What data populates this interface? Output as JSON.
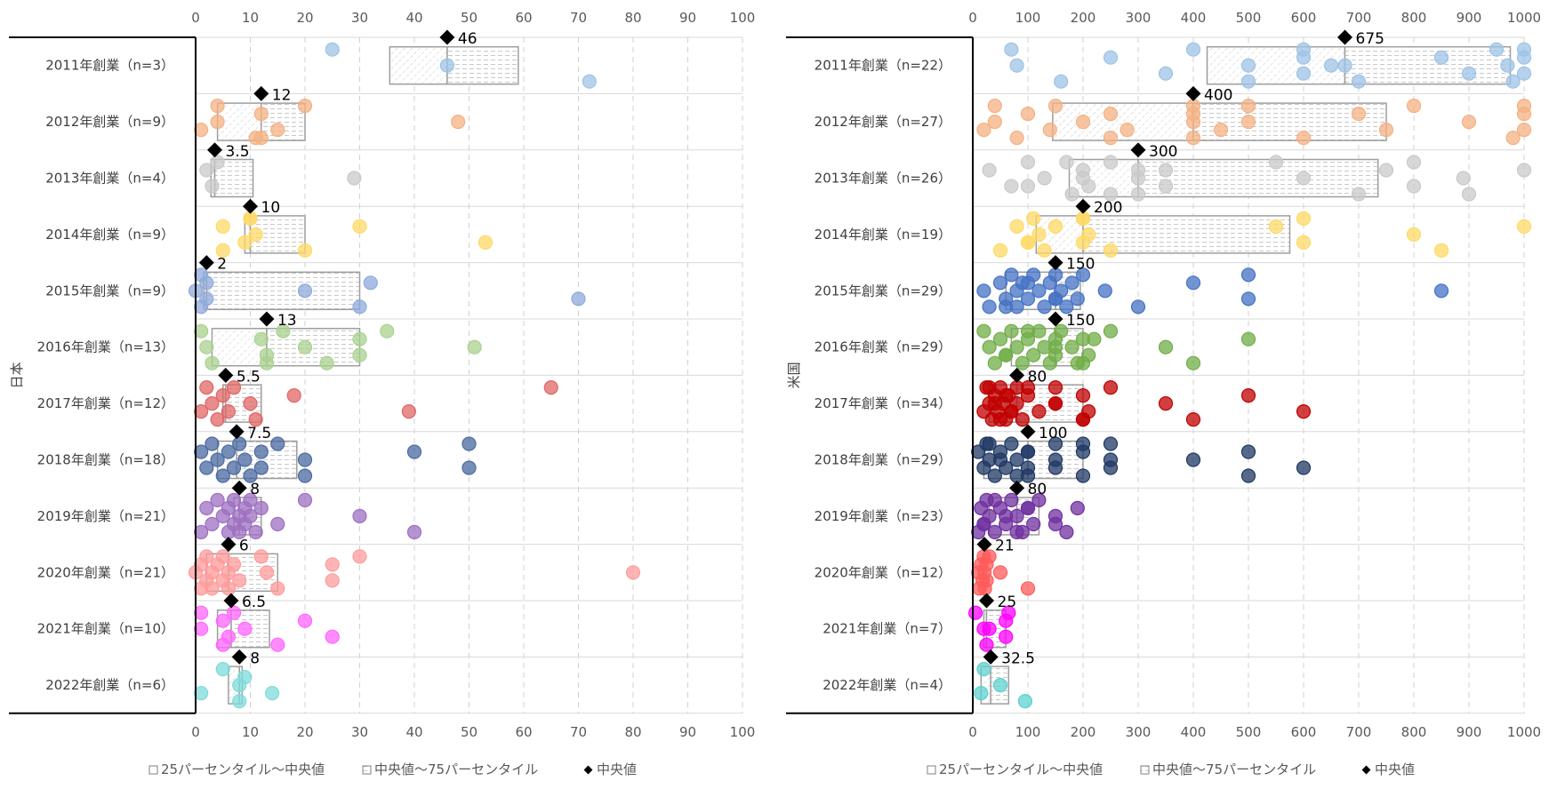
{
  "legend": {
    "q1": "25パーセンタイル～中央値",
    "q3": "中央値～75パーセンタイル",
    "median": "中央値"
  },
  "chart_data": [
    {
      "type": "scatter",
      "group_label": "日本",
      "xlim": [
        0,
        100
      ],
      "xticks": [
        0,
        10,
        20,
        30,
        40,
        50,
        60,
        70,
        80,
        90,
        100
      ],
      "tick_labels": [
        "0",
        "10",
        "20",
        "30",
        "40",
        "50",
        "60",
        "70",
        "80",
        "90",
        "100"
      ],
      "grid": true,
      "legend_position": "bottom",
      "categories": [
        {
          "label": "2011年創業（n=3）",
          "color": "#9dc3e6",
          "q1": 35.5,
          "median": 46,
          "q3": 59,
          "median_label": "46",
          "points": [
            25,
            46,
            72
          ]
        },
        {
          "label": "2012年創業（n=9）",
          "color": "#f4b183",
          "q1": 4,
          "median": 12,
          "q3": 20,
          "median_label": "12",
          "points": [
            1,
            4,
            4,
            11,
            12,
            15,
            20,
            48,
            12
          ]
        },
        {
          "label": "2013年創業（n=4）",
          "color": "#c9c9c9",
          "q1": 2.8,
          "median": 3.5,
          "q3": 10.5,
          "median_label": "3.5",
          "points": [
            2,
            3,
            4,
            29
          ]
        },
        {
          "label": "2014年創業（n=9）",
          "color": "#ffd966",
          "q1": 9,
          "median": 10,
          "q3": 20,
          "median_label": "10",
          "points": [
            5,
            5,
            9,
            10,
            11,
            20,
            30,
            53,
            10
          ]
        },
        {
          "label": "2015年創業（n=9）",
          "color": "#8faadc",
          "q1": 1.5,
          "median": 2,
          "q3": 30,
          "median_label": "2",
          "points": [
            0,
            1,
            2,
            2,
            1,
            20,
            30,
            32,
            70
          ]
        },
        {
          "label": "2016年創業（n=13）",
          "color": "#a9d18e",
          "q1": 3,
          "median": 13,
          "q3": 30,
          "median_label": "13",
          "points": [
            1,
            2,
            3,
            12,
            13,
            16,
            20,
            24,
            30,
            30,
            35,
            51,
            13
          ]
        },
        {
          "label": "2017年創業（n=12）",
          "color": "#e06666",
          "q1": 5,
          "median": 5.5,
          "q3": 12,
          "median_label": "5.5",
          "points": [
            1,
            2,
            3,
            4,
            5,
            6,
            7,
            10,
            11,
            18,
            39,
            65
          ]
        },
        {
          "label": "2018年創業（n=18）",
          "color": "#4a6aa0",
          "q1": 4,
          "median": 7.5,
          "q3": 18.5,
          "median_label": "7.5",
          "points": [
            1,
            2,
            3,
            4,
            5,
            6,
            7,
            8,
            9,
            10,
            12,
            12,
            15,
            20,
            20,
            40,
            50,
            50
          ]
        },
        {
          "label": "2019年創業（n=21）",
          "color": "#9e6fc2",
          "q1": 7,
          "median": 8,
          "q3": 12,
          "median_label": "8",
          "points": [
            1,
            2,
            3,
            4,
            5,
            6,
            6,
            7,
            7,
            8,
            8,
            9,
            9,
            10,
            10,
            11,
            12,
            15,
            20,
            30,
            40
          ]
        },
        {
          "label": "2020年創業（n=21）",
          "color": "#ff9b9b",
          "q1": 2,
          "median": 6,
          "q3": 15,
          "median_label": "6",
          "points": [
            0,
            1,
            1,
            2,
            2,
            3,
            3,
            4,
            5,
            5,
            6,
            6,
            7,
            8,
            12,
            13,
            15,
            25,
            25,
            30,
            80
          ]
        },
        {
          "label": "2021年創業（n=10）",
          "color": "#ff66ff",
          "q1": 4,
          "median": 6.5,
          "q3": 13.5,
          "median_label": "6.5",
          "points": [
            1,
            1,
            5,
            5,
            6,
            7,
            9,
            15,
            20,
            25
          ]
        },
        {
          "label": "2022年創業（n=6）",
          "color": "#7fdbdb",
          "q1": 6,
          "median": 8,
          "q3": 8.5,
          "median_label": "8",
          "points": [
            1,
            5,
            8,
            8,
            9,
            14
          ]
        }
      ]
    },
    {
      "type": "scatter",
      "group_label": "米国",
      "xlim": [
        0,
        1000
      ],
      "xticks": [
        0,
        100,
        200,
        300,
        400,
        500,
        600,
        700,
        800,
        900,
        1000
      ],
      "tick_labels": [
        "0",
        "100",
        "200",
        "300",
        "400",
        "500",
        "600",
        "700",
        "800",
        "900",
        "1000"
      ],
      "grid": true,
      "legend_position": "bottom",
      "categories": [
        {
          "label": "2011年創業（n=22）",
          "color": "#9dc3e6",
          "q1": 425,
          "median": 675,
          "q3": 975,
          "median_label": "675",
          "points": [
            70,
            80,
            160,
            250,
            350,
            400,
            500,
            500,
            600,
            600,
            600,
            650,
            700,
            850,
            900,
            950,
            970,
            980,
            1000,
            1000,
            1000,
            675
          ]
        },
        {
          "label": "2012年創業（n=27）",
          "color": "#f4b183",
          "q1": 145,
          "median": 400,
          "q3": 750,
          "median_label": "400",
          "points": [
            20,
            40,
            40,
            80,
            100,
            140,
            150,
            200,
            250,
            250,
            280,
            400,
            400,
            400,
            400,
            450,
            500,
            500,
            600,
            700,
            750,
            800,
            900,
            980,
            1000,
            1000,
            1000
          ]
        },
        {
          "label": "2013年創業（n=26）",
          "color": "#c9c9c9",
          "q1": 175,
          "median": 300,
          "q3": 735,
          "median_label": "300",
          "points": [
            30,
            70,
            100,
            130,
            180,
            200,
            210,
            250,
            300,
            300,
            350,
            350,
            550,
            600,
            700,
            750,
            800,
            800,
            890,
            900,
            1000,
            100,
            170,
            200,
            250,
            300
          ]
        },
        {
          "label": "2014年創業（n=19）",
          "color": "#ffd966",
          "q1": 115,
          "median": 200,
          "q3": 575,
          "median_label": "200",
          "points": [
            50,
            80,
            100,
            110,
            120,
            130,
            150,
            200,
            200,
            210,
            250,
            550,
            600,
            600,
            800,
            850,
            1000,
            100,
            200
          ]
        },
        {
          "label": "2015年創業（n=29）",
          "color": "#4472c4",
          "q1": 60,
          "median": 150,
          "q3": 195,
          "median_label": "150",
          "points": [
            20,
            30,
            50,
            60,
            70,
            80,
            80,
            90,
            100,
            110,
            120,
            130,
            140,
            150,
            150,
            160,
            170,
            180,
            190,
            200,
            240,
            300,
            400,
            500,
            500,
            850,
            60,
            100,
            150
          ]
        },
        {
          "label": "2016年創業（n=29）",
          "color": "#70ad47",
          "q1": 70,
          "median": 150,
          "q3": 200,
          "median_label": "150",
          "points": [
            20,
            30,
            40,
            50,
            60,
            70,
            80,
            90,
            100,
            110,
            120,
            130,
            140,
            150,
            150,
            160,
            180,
            190,
            200,
            210,
            250,
            350,
            400,
            500,
            60,
            100,
            150,
            200,
            220
          ]
        },
        {
          "label": "2017年創業（n=34）",
          "color": "#c00000",
          "q1": 30,
          "median": 80,
          "q3": 200,
          "median_label": "80",
          "points": [
            20,
            25,
            30,
            35,
            40,
            45,
            50,
            55,
            60,
            65,
            70,
            80,
            80,
            90,
            100,
            120,
            150,
            150,
            200,
            200,
            210,
            250,
            350,
            400,
            500,
            600,
            30,
            40,
            50,
            60,
            70,
            100,
            150,
            200
          ]
        },
        {
          "label": "2018年創業（n=29）",
          "color": "#1f3864",
          "q1": 20,
          "median": 100,
          "q3": 200,
          "median_label": "100",
          "points": [
            10,
            20,
            25,
            30,
            40,
            50,
            60,
            70,
            80,
            100,
            100,
            100,
            150,
            150,
            200,
            200,
            250,
            250,
            400,
            500,
            500,
            600,
            30,
            50,
            80,
            100,
            150,
            200,
            250
          ]
        },
        {
          "label": "2019年創業（n=23）",
          "color": "#7030a0",
          "q1": 30,
          "median": 80,
          "q3": 120,
          "median_label": "80",
          "points": [
            10,
            15,
            20,
            25,
            30,
            40,
            50,
            60,
            70,
            80,
            90,
            100,
            110,
            120,
            150,
            170,
            190,
            20,
            40,
            60,
            80,
            100,
            150
          ]
        },
        {
          "label": "2020年創業（n=12）",
          "color": "#ff5b5b",
          "q1": 18,
          "median": 21,
          "q3": 25,
          "median_label": "21",
          "points": [
            10,
            12,
            15,
            18,
            20,
            21,
            22,
            25,
            25,
            30,
            50,
            100
          ]
        },
        {
          "label": "2021年創業（n=7）",
          "color": "#ff00ff",
          "q1": 20,
          "median": 25,
          "q3": 60,
          "median_label": "25",
          "points": [
            5,
            20,
            25,
            60,
            60,
            65,
            30
          ]
        },
        {
          "label": "2022年創業（n=4）",
          "color": "#5fd0d0",
          "q1": 15,
          "median": 32.5,
          "q3": 65,
          "median_label": "32.5",
          "points": [
            15,
            20,
            50,
            95
          ]
        }
      ]
    }
  ]
}
